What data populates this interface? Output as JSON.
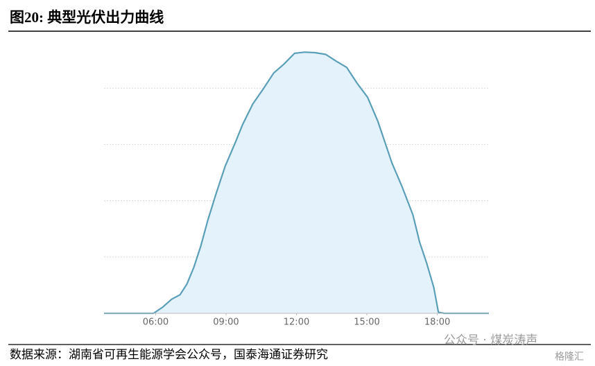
{
  "chart_data": {
    "type": "area",
    "title": "图20:  典型光伏出力曲线",
    "x": [
      3.8,
      5.91,
      6.3,
      6.68,
      7.04,
      7.33,
      7.63,
      7.92,
      8.22,
      8.57,
      8.96,
      9.4,
      9.7,
      10.14,
      10.59,
      11.03,
      11.47,
      11.92,
      12.36,
      12.8,
      13.25,
      13.69,
      14.14,
      14.58,
      15.03,
      15.47,
      15.77,
      16.07,
      16.51,
      16.96,
      17.25,
      17.55,
      17.85,
      18.05,
      18.29,
      20.2
    ],
    "values": [
      0,
      0,
      0.11,
      0.25,
      0.33,
      0.52,
      0.82,
      1.19,
      1.65,
      2.12,
      2.61,
      3.04,
      3.35,
      3.72,
      3.99,
      4.27,
      4.43,
      4.62,
      4.64,
      4.63,
      4.6,
      4.48,
      4.37,
      4.09,
      3.84,
      3.41,
      3.04,
      2.67,
      2.24,
      1.75,
      1.26,
      0.89,
      0.46,
      0.02,
      0,
      0
    ],
    "color": "#5a9fb8",
    "fill": "#e4f2fb",
    "xlim": [
      3.8,
      20.2
    ],
    "xticks": [
      {
        "value": 6,
        "label": "06:00"
      },
      {
        "value": 9,
        "label": "09:00"
      },
      {
        "value": 12,
        "label": "12:00"
      },
      {
        "value": 15,
        "label": "15:00"
      },
      {
        "value": 18,
        "label": "18:00"
      }
    ],
    "ylim": [
      0,
      5
    ],
    "gridlines": [
      1,
      2,
      3,
      4
    ],
    "grid": true,
    "source": "数据来源：湖南省可再生能源学会公众号，国泰海通证券研究",
    "watermark": "公众号 · 煤炭涛声",
    "watermark2": "格隆汇"
  }
}
